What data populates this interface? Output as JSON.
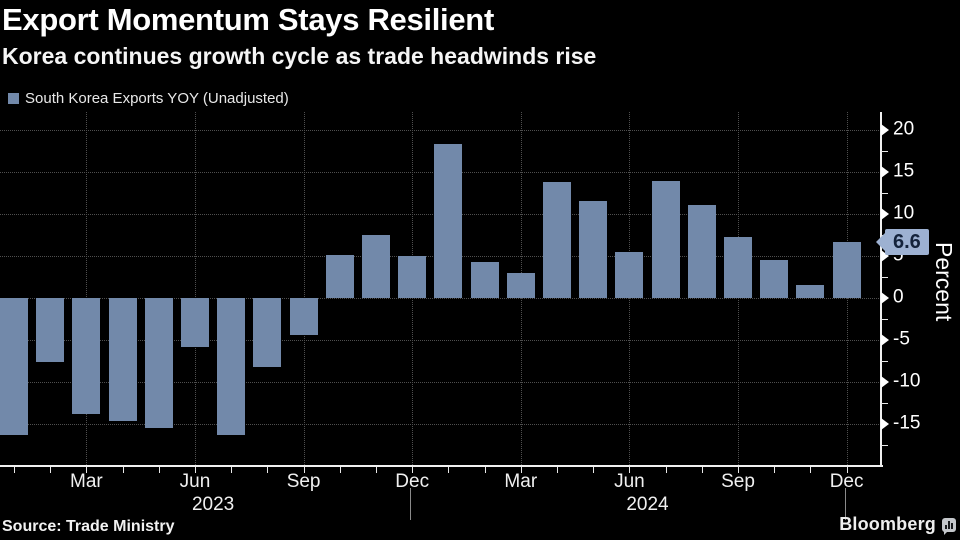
{
  "header": {
    "title": "Export Momentum Stays Resilient",
    "subtitle": "Korea continues growth cycle as trade headwinds rise"
  },
  "legend": {
    "label": "South Korea Exports YOY (Unadjusted)"
  },
  "chart_data": {
    "type": "bar",
    "title": "Export Momentum Stays Resilient",
    "subtitle": "Korea continues growth cycle as trade headwinds rise",
    "categories": [
      "Jan 2023",
      "Feb 2023",
      "Mar 2023",
      "Apr 2023",
      "May 2023",
      "Jun 2023",
      "Jul 2023",
      "Aug 2023",
      "Sep 2023",
      "Oct 2023",
      "Nov 2023",
      "Dec 2023",
      "Jan 2024",
      "Feb 2024",
      "Mar 2024",
      "Apr 2024",
      "May 2024",
      "Jun 2024",
      "Jul 2024",
      "Aug 2024",
      "Sep 2024",
      "Oct 2024",
      "Nov 2024",
      "Dec 2024"
    ],
    "series": [
      {
        "name": "South Korea Exports YOY (Unadjusted)",
        "values": [
          -16.4,
          -7.6,
          -13.9,
          -14.7,
          -15.5,
          -5.9,
          -16.3,
          -8.2,
          -4.4,
          5.1,
          7.5,
          5.0,
          18.3,
          4.3,
          3.0,
          13.8,
          11.5,
          5.5,
          13.9,
          11.0,
          7.2,
          4.5,
          1.5,
          6.6
        ]
      }
    ],
    "ylabel": "Percent",
    "ylim": [
      -20,
      22
    ],
    "yticks": [
      20,
      15,
      10,
      5,
      0,
      -5,
      -10,
      -15
    ],
    "minor_tick_step": 2.5,
    "xtick_months": [
      "Mar",
      "Jun",
      "Sep",
      "Dec"
    ],
    "year_labels": [
      "2023",
      "2024"
    ],
    "grid": true,
    "legend_position": "top-left",
    "axis_side": "right",
    "last_value_label": "6.6",
    "colors": {
      "background": "#000000",
      "bar": "#7289aa",
      "callout_bg": "#9db1d2",
      "callout_text": "#14233c",
      "gridline": "#4f4f4f",
      "axis": "#f0f0f0"
    }
  },
  "footer": {
    "source": "Source: Trade Ministry",
    "brand": "Bloomberg",
    "brand_icon": "bar-chart-bubble-icon"
  }
}
